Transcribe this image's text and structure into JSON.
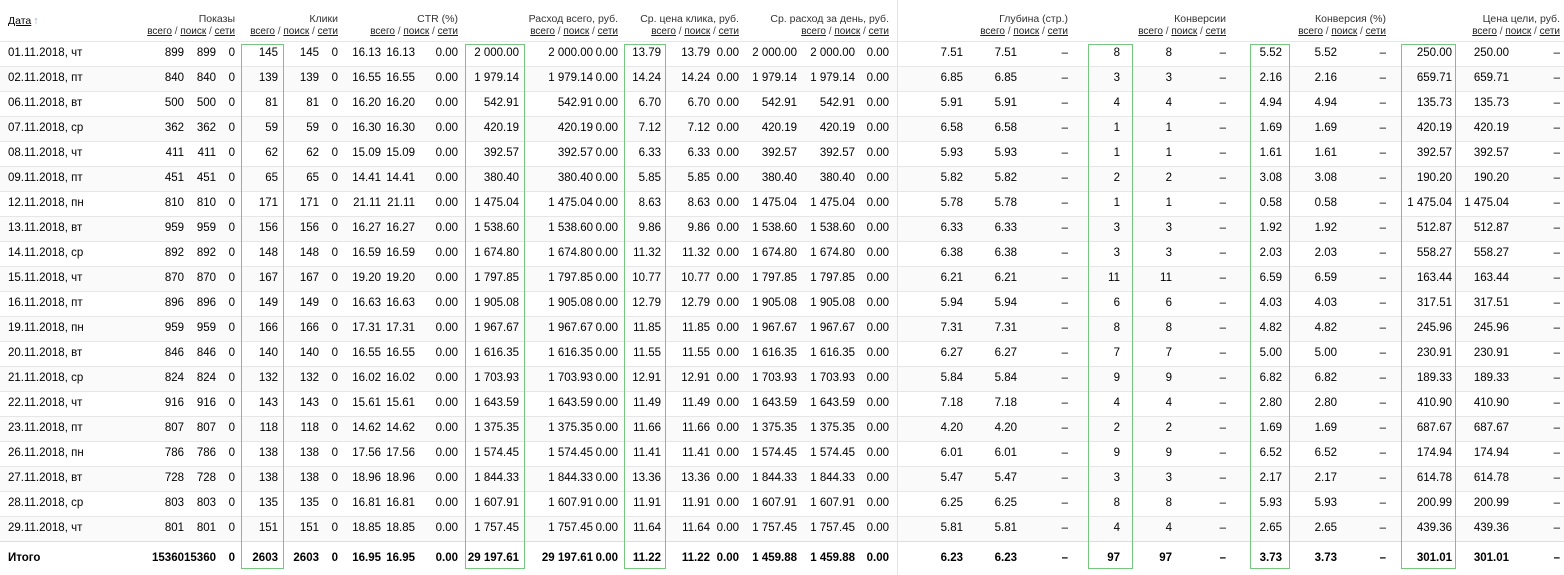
{
  "columns": [
    {
      "id": "date",
      "label": "Дата",
      "subs": []
    },
    {
      "id": "impressions",
      "label": "Показы",
      "subs": [
        "всего",
        "поиск",
        "сети"
      ]
    },
    {
      "id": "clicks",
      "label": "Клики",
      "subs": [
        "всего",
        "поиск",
        "сети"
      ]
    },
    {
      "id": "ctr",
      "label": "CTR (%)",
      "subs": [
        "всего",
        "поиск",
        "сети"
      ]
    },
    {
      "id": "spend",
      "label": "Расход всего, руб.",
      "subs": [
        "всего",
        "поиск",
        "сети"
      ]
    },
    {
      "id": "cpc",
      "label": "Ср. цена клика, руб.",
      "subs": [
        "всего",
        "поиск",
        "сети"
      ]
    },
    {
      "id": "daily",
      "label": "Ср. расход за день, руб.",
      "subs": [
        "всего",
        "поиск",
        "сети"
      ]
    },
    {
      "id": "depth",
      "label": "Глубина (стр.)",
      "subs": [
        "всего",
        "поиск",
        "сети"
      ]
    },
    {
      "id": "conv",
      "label": "Конверсии",
      "subs": [
        "всего",
        "поиск",
        "сети"
      ]
    },
    {
      "id": "convrate",
      "label": "Конверсия (%)",
      "subs": [
        "всего",
        "поиск",
        "сети"
      ]
    },
    {
      "id": "goalprice",
      "label": "Цена цели, руб.",
      "subs": [
        "всего",
        "поиск",
        "сети"
      ]
    }
  ],
  "sort_arrow": "↑",
  "highlight_color": "#76c67f",
  "rows": [
    {
      "date": "01.11.2018, чт",
      "values": [
        "899",
        "899",
        "0",
        "145",
        "145",
        "0",
        "16.13",
        "16.13",
        "0.00",
        "2 000.00",
        "2 000.00",
        "0.00",
        "13.79",
        "13.79",
        "0.00",
        "2 000.00",
        "2 000.00",
        "0.00",
        "7.51",
        "7.51",
        "–",
        "8",
        "8",
        "–",
        "5.52",
        "5.52",
        "–",
        "250.00",
        "250.00",
        "–"
      ]
    },
    {
      "date": "02.11.2018, пт",
      "values": [
        "840",
        "840",
        "0",
        "139",
        "139",
        "0",
        "16.55",
        "16.55",
        "0.00",
        "1 979.14",
        "1 979.14",
        "0.00",
        "14.24",
        "14.24",
        "0.00",
        "1 979.14",
        "1 979.14",
        "0.00",
        "6.85",
        "6.85",
        "–",
        "3",
        "3",
        "–",
        "2.16",
        "2.16",
        "–",
        "659.71",
        "659.71",
        "–"
      ]
    },
    {
      "date": "06.11.2018, вт",
      "values": [
        "500",
        "500",
        "0",
        "81",
        "81",
        "0",
        "16.20",
        "16.20",
        "0.00",
        "542.91",
        "542.91",
        "0.00",
        "6.70",
        "6.70",
        "0.00",
        "542.91",
        "542.91",
        "0.00",
        "5.91",
        "5.91",
        "–",
        "4",
        "4",
        "–",
        "4.94",
        "4.94",
        "–",
        "135.73",
        "135.73",
        "–"
      ]
    },
    {
      "date": "07.11.2018, ср",
      "values": [
        "362",
        "362",
        "0",
        "59",
        "59",
        "0",
        "16.30",
        "16.30",
        "0.00",
        "420.19",
        "420.19",
        "0.00",
        "7.12",
        "7.12",
        "0.00",
        "420.19",
        "420.19",
        "0.00",
        "6.58",
        "6.58",
        "–",
        "1",
        "1",
        "–",
        "1.69",
        "1.69",
        "–",
        "420.19",
        "420.19",
        "–"
      ]
    },
    {
      "date": "08.11.2018, чт",
      "values": [
        "411",
        "411",
        "0",
        "62",
        "62",
        "0",
        "15.09",
        "15.09",
        "0.00",
        "392.57",
        "392.57",
        "0.00",
        "6.33",
        "6.33",
        "0.00",
        "392.57",
        "392.57",
        "0.00",
        "5.93",
        "5.93",
        "–",
        "1",
        "1",
        "–",
        "1.61",
        "1.61",
        "–",
        "392.57",
        "392.57",
        "–"
      ]
    },
    {
      "date": "09.11.2018, пт",
      "values": [
        "451",
        "451",
        "0",
        "65",
        "65",
        "0",
        "14.41",
        "14.41",
        "0.00",
        "380.40",
        "380.40",
        "0.00",
        "5.85",
        "5.85",
        "0.00",
        "380.40",
        "380.40",
        "0.00",
        "5.82",
        "5.82",
        "–",
        "2",
        "2",
        "–",
        "3.08",
        "3.08",
        "–",
        "190.20",
        "190.20",
        "–"
      ]
    },
    {
      "date": "12.11.2018, пн",
      "values": [
        "810",
        "810",
        "0",
        "171",
        "171",
        "0",
        "21.11",
        "21.11",
        "0.00",
        "1 475.04",
        "1 475.04",
        "0.00",
        "8.63",
        "8.63",
        "0.00",
        "1 475.04",
        "1 475.04",
        "0.00",
        "5.78",
        "5.78",
        "–",
        "1",
        "1",
        "–",
        "0.58",
        "0.58",
        "–",
        "1 475.04",
        "1 475.04",
        "–"
      ]
    },
    {
      "date": "13.11.2018, вт",
      "values": [
        "959",
        "959",
        "0",
        "156",
        "156",
        "0",
        "16.27",
        "16.27",
        "0.00",
        "1 538.60",
        "1 538.60",
        "0.00",
        "9.86",
        "9.86",
        "0.00",
        "1 538.60",
        "1 538.60",
        "0.00",
        "6.33",
        "6.33",
        "–",
        "3",
        "3",
        "–",
        "1.92",
        "1.92",
        "–",
        "512.87",
        "512.87",
        "–"
      ]
    },
    {
      "date": "14.11.2018, ср",
      "values": [
        "892",
        "892",
        "0",
        "148",
        "148",
        "0",
        "16.59",
        "16.59",
        "0.00",
        "1 674.80",
        "1 674.80",
        "0.00",
        "11.32",
        "11.32",
        "0.00",
        "1 674.80",
        "1 674.80",
        "0.00",
        "6.38",
        "6.38",
        "–",
        "3",
        "3",
        "–",
        "2.03",
        "2.03",
        "–",
        "558.27",
        "558.27",
        "–"
      ]
    },
    {
      "date": "15.11.2018, чт",
      "values": [
        "870",
        "870",
        "0",
        "167",
        "167",
        "0",
        "19.20",
        "19.20",
        "0.00",
        "1 797.85",
        "1 797.85",
        "0.00",
        "10.77",
        "10.77",
        "0.00",
        "1 797.85",
        "1 797.85",
        "0.00",
        "6.21",
        "6.21",
        "–",
        "11",
        "11",
        "–",
        "6.59",
        "6.59",
        "–",
        "163.44",
        "163.44",
        "–"
      ]
    },
    {
      "date": "16.11.2018, пт",
      "values": [
        "896",
        "896",
        "0",
        "149",
        "149",
        "0",
        "16.63",
        "16.63",
        "0.00",
        "1 905.08",
        "1 905.08",
        "0.00",
        "12.79",
        "12.79",
        "0.00",
        "1 905.08",
        "1 905.08",
        "0.00",
        "5.94",
        "5.94",
        "–",
        "6",
        "6",
        "–",
        "4.03",
        "4.03",
        "–",
        "317.51",
        "317.51",
        "–"
      ]
    },
    {
      "date": "19.11.2018, пн",
      "values": [
        "959",
        "959",
        "0",
        "166",
        "166",
        "0",
        "17.31",
        "17.31",
        "0.00",
        "1 967.67",
        "1 967.67",
        "0.00",
        "11.85",
        "11.85",
        "0.00",
        "1 967.67",
        "1 967.67",
        "0.00",
        "7.31",
        "7.31",
        "–",
        "8",
        "8",
        "–",
        "4.82",
        "4.82",
        "–",
        "245.96",
        "245.96",
        "–"
      ]
    },
    {
      "date": "20.11.2018, вт",
      "values": [
        "846",
        "846",
        "0",
        "140",
        "140",
        "0",
        "16.55",
        "16.55",
        "0.00",
        "1 616.35",
        "1 616.35",
        "0.00",
        "11.55",
        "11.55",
        "0.00",
        "1 616.35",
        "1 616.35",
        "0.00",
        "6.27",
        "6.27",
        "–",
        "7",
        "7",
        "–",
        "5.00",
        "5.00",
        "–",
        "230.91",
        "230.91",
        "–"
      ]
    },
    {
      "date": "21.11.2018, ср",
      "values": [
        "824",
        "824",
        "0",
        "132",
        "132",
        "0",
        "16.02",
        "16.02",
        "0.00",
        "1 703.93",
        "1 703.93",
        "0.00",
        "12.91",
        "12.91",
        "0.00",
        "1 703.93",
        "1 703.93",
        "0.00",
        "5.84",
        "5.84",
        "–",
        "9",
        "9",
        "–",
        "6.82",
        "6.82",
        "–",
        "189.33",
        "189.33",
        "–"
      ]
    },
    {
      "date": "22.11.2018, чт",
      "values": [
        "916",
        "916",
        "0",
        "143",
        "143",
        "0",
        "15.61",
        "15.61",
        "0.00",
        "1 643.59",
        "1 643.59",
        "0.00",
        "11.49",
        "11.49",
        "0.00",
        "1 643.59",
        "1 643.59",
        "0.00",
        "7.18",
        "7.18",
        "–",
        "4",
        "4",
        "–",
        "2.80",
        "2.80",
        "–",
        "410.90",
        "410.90",
        "–"
      ]
    },
    {
      "date": "23.11.2018, пт",
      "values": [
        "807",
        "807",
        "0",
        "118",
        "118",
        "0",
        "14.62",
        "14.62",
        "0.00",
        "1 375.35",
        "1 375.35",
        "0.00",
        "11.66",
        "11.66",
        "0.00",
        "1 375.35",
        "1 375.35",
        "0.00",
        "4.20",
        "4.20",
        "–",
        "2",
        "2",
        "–",
        "1.69",
        "1.69",
        "–",
        "687.67",
        "687.67",
        "–"
      ]
    },
    {
      "date": "26.11.2018, пн",
      "values": [
        "786",
        "786",
        "0",
        "138",
        "138",
        "0",
        "17.56",
        "17.56",
        "0.00",
        "1 574.45",
        "1 574.45",
        "0.00",
        "11.41",
        "11.41",
        "0.00",
        "1 574.45",
        "1 574.45",
        "0.00",
        "6.01",
        "6.01",
        "–",
        "9",
        "9",
        "–",
        "6.52",
        "6.52",
        "–",
        "174.94",
        "174.94",
        "–"
      ]
    },
    {
      "date": "27.11.2018, вт",
      "values": [
        "728",
        "728",
        "0",
        "138",
        "138",
        "0",
        "18.96",
        "18.96",
        "0.00",
        "1 844.33",
        "1 844.33",
        "0.00",
        "13.36",
        "13.36",
        "0.00",
        "1 844.33",
        "1 844.33",
        "0.00",
        "5.47",
        "5.47",
        "–",
        "3",
        "3",
        "–",
        "2.17",
        "2.17",
        "–",
        "614.78",
        "614.78",
        "–"
      ]
    },
    {
      "date": "28.11.2018, ср",
      "values": [
        "803",
        "803",
        "0",
        "135",
        "135",
        "0",
        "16.81",
        "16.81",
        "0.00",
        "1 607.91",
        "1 607.91",
        "0.00",
        "11.91",
        "11.91",
        "0.00",
        "1 607.91",
        "1 607.91",
        "0.00",
        "6.25",
        "6.25",
        "–",
        "8",
        "8",
        "–",
        "5.93",
        "5.93",
        "–",
        "200.99",
        "200.99",
        "–"
      ]
    },
    {
      "date": "29.11.2018, чт",
      "values": [
        "801",
        "801",
        "0",
        "151",
        "151",
        "0",
        "18.85",
        "18.85",
        "0.00",
        "1 757.45",
        "1 757.45",
        "0.00",
        "11.64",
        "11.64",
        "0.00",
        "1 757.45",
        "1 757.45",
        "0.00",
        "5.81",
        "5.81",
        "–",
        "4",
        "4",
        "–",
        "2.65",
        "2.65",
        "–",
        "439.36",
        "439.36",
        "–"
      ]
    }
  ],
  "total": {
    "label": "Итого",
    "values": [
      "15360",
      "15360",
      "0",
      "2603",
      "2603",
      "0",
      "16.95",
      "16.95",
      "0.00",
      "29 197.61",
      "29 197.61",
      "0.00",
      "11.22",
      "11.22",
      "0.00",
      "1 459.88",
      "1 459.88",
      "0.00",
      "6.23",
      "6.23",
      "–",
      "97",
      "97",
      "–",
      "3.73",
      "3.73",
      "–",
      "301.01",
      "301.01",
      "–"
    ]
  }
}
